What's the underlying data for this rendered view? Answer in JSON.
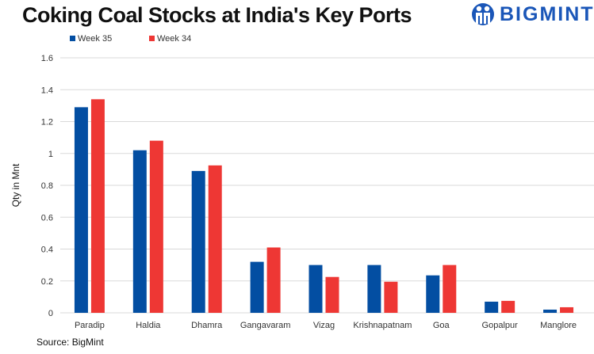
{
  "title": "Coking Coal Stocks at India's Key Ports",
  "logo_text": "BIGMINT",
  "source": "Source: BigMint",
  "colors": {
    "week35": "#034EA2",
    "week34": "#EE3734"
  },
  "chart_data": {
    "type": "bar",
    "title": "Coking Coal Stocks at India's Key Ports",
    "xlabel": "",
    "ylabel": "Qty in Mnt",
    "ylim": [
      0,
      1.6
    ],
    "yticks": [
      "0",
      "0.2",
      "0.4",
      "0.6",
      "0.8",
      "1",
      "1.2",
      "1.4",
      "1.6"
    ],
    "grid": true,
    "legend": "top-left",
    "categories": [
      "Paradip",
      "Haldia",
      "Dhamra",
      "Gangavaram",
      "Vizag",
      "Krishnapatnam",
      "Goa",
      "Gopalpur",
      "Manglore"
    ],
    "series": [
      {
        "name": "Week 35",
        "values": [
          1.29,
          1.02,
          0.89,
          0.32,
          0.3,
          0.3,
          0.235,
          0.07,
          0.02
        ]
      },
      {
        "name": "Week 34",
        "values": [
          1.34,
          1.08,
          0.925,
          0.41,
          0.225,
          0.195,
          0.3,
          0.075,
          0.035
        ]
      }
    ]
  }
}
